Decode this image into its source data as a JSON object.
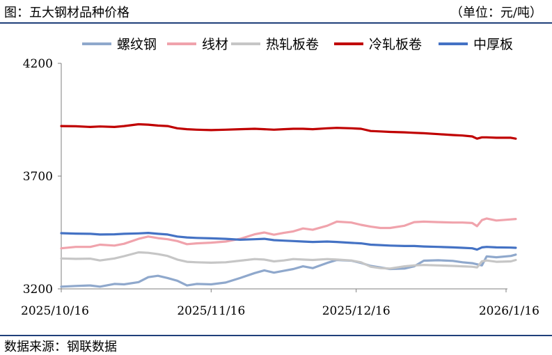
{
  "header": {
    "title": "图：五大钢材品种价格",
    "unit": "（单位：元/吨）"
  },
  "footer": {
    "source": "数据来源：钢联数据"
  },
  "chart_data": {
    "type": "line",
    "title": "",
    "xlabel": "",
    "ylabel": "",
    "ylim": [
      3200,
      4200
    ],
    "yticks": [
      3200,
      3700,
      4200
    ],
    "xlim": [
      "2025-10-16",
      "2026-01-16"
    ],
    "xticks": [
      {
        "date": "2025-10-16",
        "label": "2025/10/16"
      },
      {
        "date": "2025-11-16",
        "label": "2025/11/16"
      },
      {
        "date": "2025-12-16",
        "label": "2025/12/16"
      },
      {
        "date": "2026-01-16",
        "label": "2026/1/16"
      }
    ],
    "legend_position": "top",
    "grid": false,
    "series": [
      {
        "name": "螺纹钢",
        "color": "#8fa8cc",
        "points": [
          [
            "2025-10-16",
            3210
          ],
          [
            "2025-10-19",
            3213
          ],
          [
            "2025-10-22",
            3215
          ],
          [
            "2025-10-24",
            3210
          ],
          [
            "2025-10-27",
            3222
          ],
          [
            "2025-10-29",
            3220
          ],
          [
            "2025-11-01",
            3230
          ],
          [
            "2025-11-03",
            3252
          ],
          [
            "2025-11-05",
            3258
          ],
          [
            "2025-11-07",
            3248
          ],
          [
            "2025-11-09",
            3236
          ],
          [
            "2025-11-11",
            3215
          ],
          [
            "2025-11-13",
            3222
          ],
          [
            "2025-11-16",
            3220
          ],
          [
            "2025-11-19",
            3228
          ],
          [
            "2025-11-22",
            3248
          ],
          [
            "2025-11-25",
            3270
          ],
          [
            "2025-11-27",
            3282
          ],
          [
            "2025-11-29",
            3272
          ],
          [
            "2025-12-01",
            3280
          ],
          [
            "2025-12-03",
            3288
          ],
          [
            "2025-12-05",
            3300
          ],
          [
            "2025-12-07",
            3292
          ],
          [
            "2025-12-10",
            3315
          ],
          [
            "2025-12-12",
            3328
          ],
          [
            "2025-12-15",
            3325
          ],
          [
            "2025-12-17",
            3315
          ],
          [
            "2025-12-19",
            3302
          ],
          [
            "2025-12-21",
            3295
          ],
          [
            "2025-12-23",
            3288
          ],
          [
            "2025-12-26",
            3290
          ],
          [
            "2025-12-28",
            3300
          ],
          [
            "2025-12-30",
            3325
          ],
          [
            "2026-01-02",
            3327
          ],
          [
            "2026-01-05",
            3324
          ],
          [
            "2026-01-07",
            3318
          ],
          [
            "2026-01-09",
            3314
          ],
          [
            "2026-01-11",
            3304
          ],
          [
            "2026-01-12",
            3344
          ],
          [
            "2026-01-14",
            3340
          ],
          [
            "2026-01-17",
            3346
          ],
          [
            "2026-01-18",
            3352
          ]
        ]
      },
      {
        "name": "线材",
        "color": "#f0a3ac",
        "points": [
          [
            "2025-10-16",
            3380
          ],
          [
            "2025-10-19",
            3386
          ],
          [
            "2025-10-22",
            3386
          ],
          [
            "2025-10-24",
            3396
          ],
          [
            "2025-10-27",
            3392
          ],
          [
            "2025-10-29",
            3400
          ],
          [
            "2025-11-01",
            3422
          ],
          [
            "2025-11-03",
            3432
          ],
          [
            "2025-11-05",
            3425
          ],
          [
            "2025-11-07",
            3420
          ],
          [
            "2025-11-09",
            3412
          ],
          [
            "2025-11-11",
            3398
          ],
          [
            "2025-11-13",
            3402
          ],
          [
            "2025-11-16",
            3405
          ],
          [
            "2025-11-19",
            3410
          ],
          [
            "2025-11-22",
            3422
          ],
          [
            "2025-11-25",
            3442
          ],
          [
            "2025-11-27",
            3450
          ],
          [
            "2025-11-29",
            3440
          ],
          [
            "2025-12-01",
            3448
          ],
          [
            "2025-12-03",
            3455
          ],
          [
            "2025-12-05",
            3468
          ],
          [
            "2025-12-07",
            3462
          ],
          [
            "2025-12-10",
            3480
          ],
          [
            "2025-12-12",
            3498
          ],
          [
            "2025-12-15",
            3494
          ],
          [
            "2025-12-17",
            3484
          ],
          [
            "2025-12-19",
            3476
          ],
          [
            "2025-12-21",
            3470
          ],
          [
            "2025-12-23",
            3470
          ],
          [
            "2025-12-26",
            3480
          ],
          [
            "2025-12-28",
            3496
          ],
          [
            "2025-12-30",
            3498
          ],
          [
            "2026-01-02",
            3496
          ],
          [
            "2026-01-05",
            3494
          ],
          [
            "2026-01-07",
            3494
          ],
          [
            "2026-01-09",
            3492
          ],
          [
            "2026-01-10",
            3478
          ],
          [
            "2026-01-11",
            3505
          ],
          [
            "2026-01-12",
            3512
          ],
          [
            "2026-01-14",
            3503
          ],
          [
            "2026-01-17",
            3508
          ],
          [
            "2026-01-18",
            3510
          ]
        ]
      },
      {
        "name": "热轧板卷",
        "color": "#c6c6c6",
        "points": [
          [
            "2025-10-16",
            3335
          ],
          [
            "2025-10-19",
            3333
          ],
          [
            "2025-10-22",
            3334
          ],
          [
            "2025-10-24",
            3326
          ],
          [
            "2025-10-27",
            3335
          ],
          [
            "2025-10-29",
            3345
          ],
          [
            "2025-11-01",
            3362
          ],
          [
            "2025-11-03",
            3360
          ],
          [
            "2025-11-05",
            3354
          ],
          [
            "2025-11-07",
            3346
          ],
          [
            "2025-11-09",
            3330
          ],
          [
            "2025-11-11",
            3320
          ],
          [
            "2025-11-13",
            3318
          ],
          [
            "2025-11-16",
            3316
          ],
          [
            "2025-11-19",
            3318
          ],
          [
            "2025-11-22",
            3325
          ],
          [
            "2025-11-25",
            3332
          ],
          [
            "2025-11-27",
            3330
          ],
          [
            "2025-11-29",
            3322
          ],
          [
            "2025-12-01",
            3326
          ],
          [
            "2025-12-03",
            3332
          ],
          [
            "2025-12-05",
            3330
          ],
          [
            "2025-12-07",
            3328
          ],
          [
            "2025-12-10",
            3332
          ],
          [
            "2025-12-12",
            3330
          ],
          [
            "2025-12-15",
            3326
          ],
          [
            "2025-12-17",
            3318
          ],
          [
            "2025-12-19",
            3298
          ],
          [
            "2025-12-21",
            3292
          ],
          [
            "2025-12-23",
            3290
          ],
          [
            "2025-12-26",
            3300
          ],
          [
            "2025-12-28",
            3304
          ],
          [
            "2025-12-30",
            3306
          ],
          [
            "2026-01-02",
            3304
          ],
          [
            "2026-01-05",
            3302
          ],
          [
            "2026-01-07",
            3300
          ],
          [
            "2026-01-09",
            3298
          ],
          [
            "2026-01-10",
            3295
          ],
          [
            "2026-01-11",
            3322
          ],
          [
            "2026-01-12",
            3326
          ],
          [
            "2026-01-14",
            3320
          ],
          [
            "2026-01-17",
            3322
          ],
          [
            "2026-01-18",
            3328
          ]
        ]
      },
      {
        "name": "冷轧板卷",
        "color": "#c00000",
        "points": [
          [
            "2025-10-16",
            3922
          ],
          [
            "2025-10-19",
            3921
          ],
          [
            "2025-10-22",
            3918
          ],
          [
            "2025-10-24",
            3920
          ],
          [
            "2025-10-27",
            3918
          ],
          [
            "2025-10-29",
            3922
          ],
          [
            "2025-11-01",
            3930
          ],
          [
            "2025-11-03",
            3928
          ],
          [
            "2025-11-05",
            3924
          ],
          [
            "2025-11-07",
            3922
          ],
          [
            "2025-11-09",
            3912
          ],
          [
            "2025-11-11",
            3908
          ],
          [
            "2025-11-13",
            3906
          ],
          [
            "2025-11-16",
            3904
          ],
          [
            "2025-11-19",
            3906
          ],
          [
            "2025-11-22",
            3908
          ],
          [
            "2025-11-25",
            3910
          ],
          [
            "2025-11-27",
            3908
          ],
          [
            "2025-11-29",
            3906
          ],
          [
            "2025-12-01",
            3908
          ],
          [
            "2025-12-03",
            3910
          ],
          [
            "2025-12-05",
            3910
          ],
          [
            "2025-12-07",
            3908
          ],
          [
            "2025-12-10",
            3912
          ],
          [
            "2025-12-12",
            3914
          ],
          [
            "2025-12-15",
            3912
          ],
          [
            "2025-12-17",
            3910
          ],
          [
            "2025-12-19",
            3900
          ],
          [
            "2025-12-21",
            3898
          ],
          [
            "2025-12-23",
            3896
          ],
          [
            "2025-12-26",
            3894
          ],
          [
            "2025-12-28",
            3892
          ],
          [
            "2025-12-30",
            3890
          ],
          [
            "2026-01-02",
            3886
          ],
          [
            "2026-01-05",
            3882
          ],
          [
            "2026-01-07",
            3880
          ],
          [
            "2026-01-09",
            3876
          ],
          [
            "2026-01-10",
            3866
          ],
          [
            "2026-01-11",
            3872
          ],
          [
            "2026-01-12",
            3872
          ],
          [
            "2026-01-14",
            3870
          ],
          [
            "2026-01-17",
            3870
          ],
          [
            "2026-01-18",
            3866
          ]
        ]
      },
      {
        "name": "中厚板",
        "color": "#4472c4",
        "points": [
          [
            "2025-10-16",
            3447
          ],
          [
            "2025-10-19",
            3445
          ],
          [
            "2025-10-22",
            3444
          ],
          [
            "2025-10-24",
            3441
          ],
          [
            "2025-10-27",
            3442
          ],
          [
            "2025-10-29",
            3444
          ],
          [
            "2025-11-01",
            3446
          ],
          [
            "2025-11-03",
            3448
          ],
          [
            "2025-11-05",
            3444
          ],
          [
            "2025-11-07",
            3441
          ],
          [
            "2025-11-09",
            3432
          ],
          [
            "2025-11-11",
            3428
          ],
          [
            "2025-11-13",
            3426
          ],
          [
            "2025-11-16",
            3424
          ],
          [
            "2025-11-19",
            3422
          ],
          [
            "2025-11-22",
            3418
          ],
          [
            "2025-11-25",
            3420
          ],
          [
            "2025-11-27",
            3422
          ],
          [
            "2025-11-29",
            3416
          ],
          [
            "2025-12-01",
            3414
          ],
          [
            "2025-12-03",
            3412
          ],
          [
            "2025-12-05",
            3410
          ],
          [
            "2025-12-07",
            3408
          ],
          [
            "2025-12-10",
            3410
          ],
          [
            "2025-12-12",
            3408
          ],
          [
            "2025-12-15",
            3404
          ],
          [
            "2025-12-17",
            3402
          ],
          [
            "2025-12-19",
            3396
          ],
          [
            "2025-12-21",
            3394
          ],
          [
            "2025-12-23",
            3392
          ],
          [
            "2025-12-26",
            3390
          ],
          [
            "2025-12-28",
            3390
          ],
          [
            "2025-12-30",
            3388
          ],
          [
            "2026-01-02",
            3386
          ],
          [
            "2026-01-05",
            3384
          ],
          [
            "2026-01-07",
            3382
          ],
          [
            "2026-01-09",
            3380
          ],
          [
            "2026-01-10",
            3374
          ],
          [
            "2026-01-11",
            3384
          ],
          [
            "2026-01-12",
            3386
          ],
          [
            "2026-01-14",
            3384
          ],
          [
            "2026-01-17",
            3383
          ],
          [
            "2026-01-18",
            3382
          ]
        ]
      }
    ]
  }
}
